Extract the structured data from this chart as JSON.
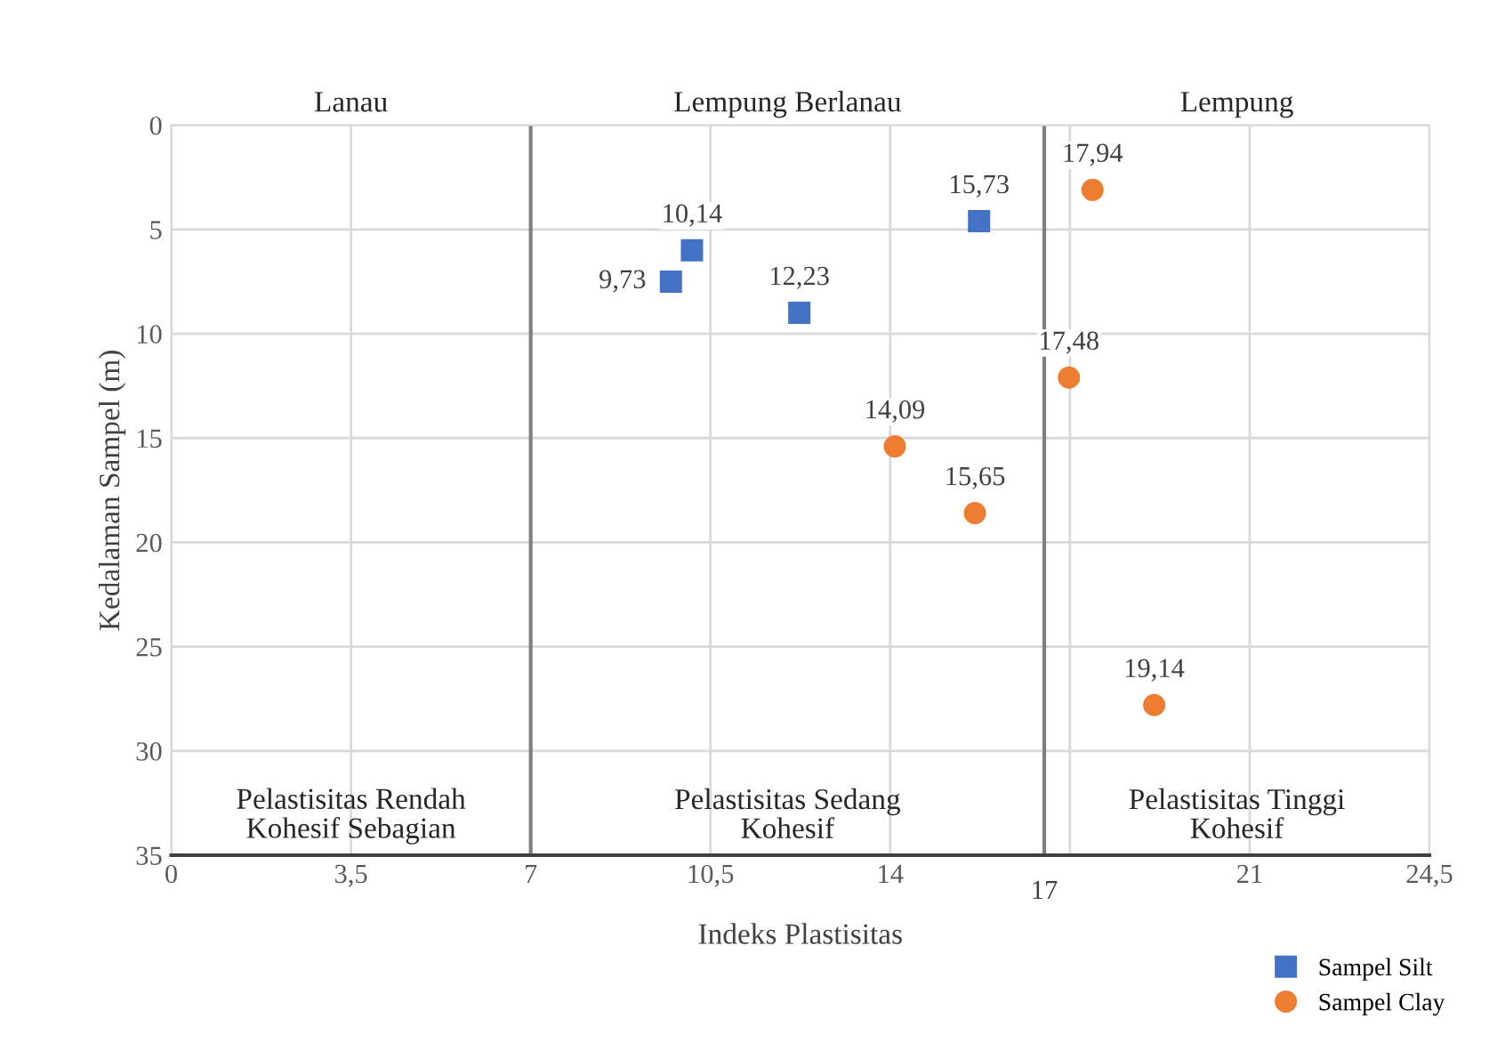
{
  "chart_data": {
    "type": "scatter",
    "xlabel": "Indeks Plastisitas",
    "ylabel": "Kedalaman Sampel (m)",
    "xlim": [
      0,
      24.5
    ],
    "ylim": [
      35,
      0
    ],
    "xticks": [
      0,
      {
        "value": 3.5,
        "label": "3,5"
      },
      7,
      {
        "value": 10.5,
        "label": "10,5"
      },
      14,
      {
        "value": 17.5,
        "label": null
      },
      21,
      {
        "value": 24.5,
        "label": "24,5"
      }
    ],
    "yticks": [
      0,
      5,
      10,
      15,
      20,
      25,
      30,
      35
    ],
    "grid": true,
    "legend": "bottom right",
    "series": [
      {
        "name": "Sampel Silt",
        "color": "#4472c4",
        "marker": "square",
        "x": [
          9.73,
          10.14,
          12.23,
          15.73
        ],
        "values": [
          7.5,
          6.0,
          9.0,
          4.6
        ]
      },
      {
        "name": "Sampel Clay",
        "color": "#ed7d31",
        "marker": "circle",
        "x": [
          17.94,
          17.48,
          14.09,
          15.65,
          19.14
        ],
        "values": [
          3.1,
          12.1,
          15.4,
          18.6,
          27.8
        ]
      }
    ],
    "ref_lines": [
      {
        "axis": "x",
        "value": 7,
        "label": null,
        "color": "#7f7f7f"
      },
      {
        "axis": "x",
        "value": 17,
        "label": "17",
        "color": "#7f7f7f"
      }
    ],
    "annotations": [
      {
        "text": "9,73",
        "x": 9.73,
        "y": 7.5
      },
      {
        "text": "10,14",
        "x": 10.14,
        "y": 6.0
      },
      {
        "text": "12,23",
        "x": 12.23,
        "y": 9.0
      },
      {
        "text": "15,73",
        "x": 15.73,
        "y": 4.6
      },
      {
        "text": "17,94",
        "x": 17.94,
        "y": 3.1
      },
      {
        "text": "17,48",
        "x": 17.48,
        "y": 12.1
      },
      {
        "text": "14,09",
        "x": 14.09,
        "y": 15.4
      },
      {
        "text": "15,65",
        "x": 15.65,
        "y": 18.6
      },
      {
        "text": "19,14",
        "x": 19.14,
        "y": 27.8
      },
      "Lanau",
      "Lempung Berlanau",
      "Lempung",
      "Pelastisitas Rendah\nKohesif Sebagian",
      "Pelastisitas Sedang\nKohesif",
      "Pelastisitas Tinggi\nKohesif"
    ]
  }
}
